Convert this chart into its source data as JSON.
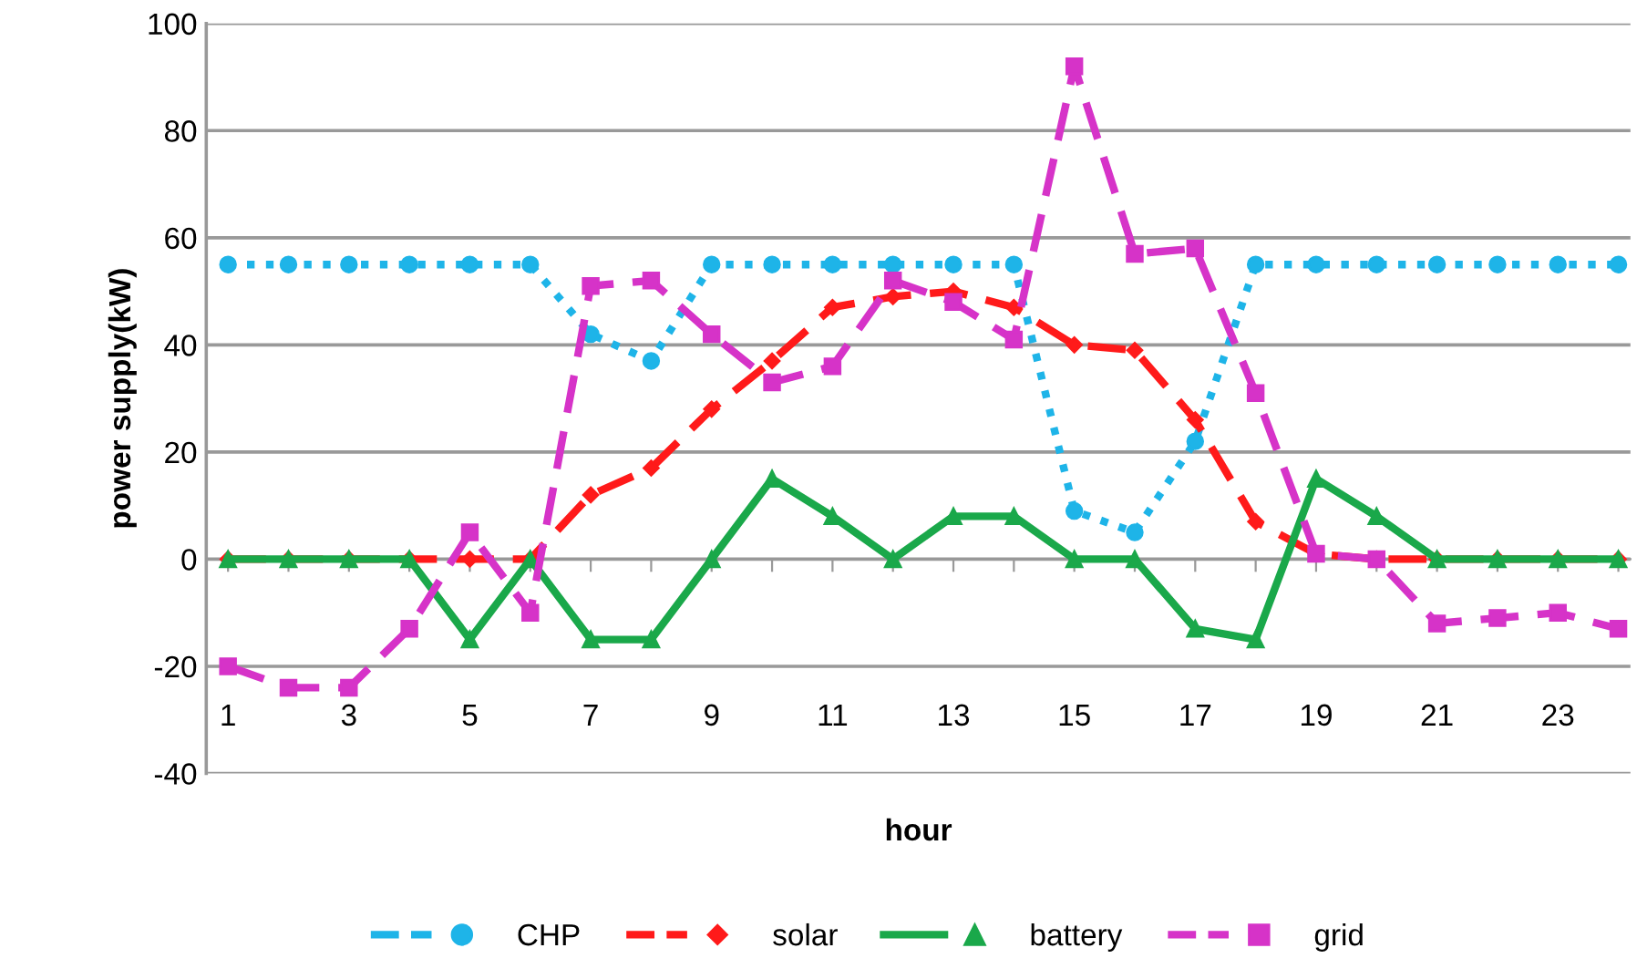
{
  "chart_data": {
    "type": "line",
    "xlabel": "hour",
    "ylabel": "power supply(kW)",
    "categories": [
      "1",
      null,
      "3",
      null,
      "5",
      null,
      "7",
      null,
      "9",
      null,
      "11",
      null,
      "13",
      null,
      "15",
      null,
      "17",
      null,
      "19",
      null,
      "21",
      null,
      "23",
      null
    ],
    "series": [
      {
        "name": "CHP",
        "color": "#1eb4e8",
        "marker": "circle",
        "line_style": "dotted",
        "values": [
          55,
          55,
          55,
          55,
          55,
          55,
          42,
          37,
          55,
          55,
          55,
          55,
          55,
          55,
          9,
          5,
          22,
          55,
          55,
          55,
          55,
          55,
          55,
          55
        ]
      },
      {
        "name": "solar",
        "color": "#ff1a1a",
        "marker": "diamond",
        "line_style": "dashed",
        "values": [
          0,
          0,
          0,
          0,
          0,
          0,
          12,
          17,
          28,
          37,
          47,
          49,
          50,
          47,
          40,
          39,
          26,
          7,
          1,
          0,
          0,
          0,
          0,
          0
        ]
      },
      {
        "name": "battery",
        "color": "#1aa84a",
        "marker": "triangle",
        "line_style": "solid",
        "values": [
          0,
          0,
          0,
          0,
          -15,
          0,
          -15,
          -15,
          0,
          15,
          8,
          0,
          8,
          8,
          0,
          0,
          -13,
          -15,
          15,
          8,
          0,
          0,
          0,
          0
        ]
      },
      {
        "name": "grid",
        "color": "#d633c8",
        "marker": "square",
        "line_style": "dashed",
        "values": [
          -20,
          -24,
          -24,
          -13,
          5,
          -10,
          51,
          52,
          42,
          33,
          36,
          52,
          48,
          41,
          92,
          57,
          58,
          31,
          1,
          0,
          -12,
          -11,
          -10,
          -13
        ]
      }
    ],
    "ylim": [
      -40,
      100
    ],
    "yticks": [
      -40,
      -20,
      0,
      20,
      40,
      60,
      80,
      100
    ],
    "grid": "y",
    "legend": "bottom"
  }
}
